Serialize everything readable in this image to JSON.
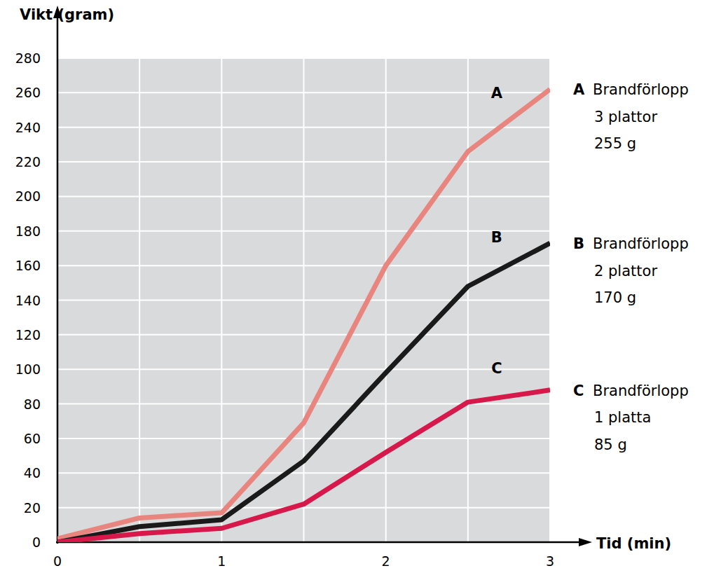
{
  "chart_data": {
    "type": "line",
    "x_label": "Tid (min)",
    "y_label": "Vikt (gram)",
    "x": [
      0,
      0.5,
      1,
      1.5,
      2,
      2.5,
      3
    ],
    "xlim": [
      0,
      3
    ],
    "xticks": [
      0,
      1,
      2,
      3
    ],
    "ylim": [
      0,
      280
    ],
    "yticks": [
      0,
      20,
      40,
      60,
      80,
      100,
      120,
      140,
      160,
      180,
      200,
      220,
      240,
      260,
      280
    ],
    "grid": true,
    "series": [
      {
        "name": "A",
        "color": "#e8857e",
        "description": [
          "Brandförlopp",
          "3 plattor",
          "255 g"
        ],
        "values": [
          2,
          14,
          17,
          69,
          160,
          226,
          262
        ]
      },
      {
        "name": "B",
        "color": "#1a1a1a",
        "description": [
          "Brandförlopp",
          "2 plattor",
          "170 g"
        ],
        "values": [
          0,
          9,
          13,
          47,
          98,
          148,
          173
        ]
      },
      {
        "name": "C",
        "color": "#d6184a",
        "description": [
          "Brandförlopp",
          "1 platta",
          "85 g"
        ],
        "values": [
          0,
          5,
          8,
          22,
          52,
          81,
          88
        ]
      }
    ]
  }
}
